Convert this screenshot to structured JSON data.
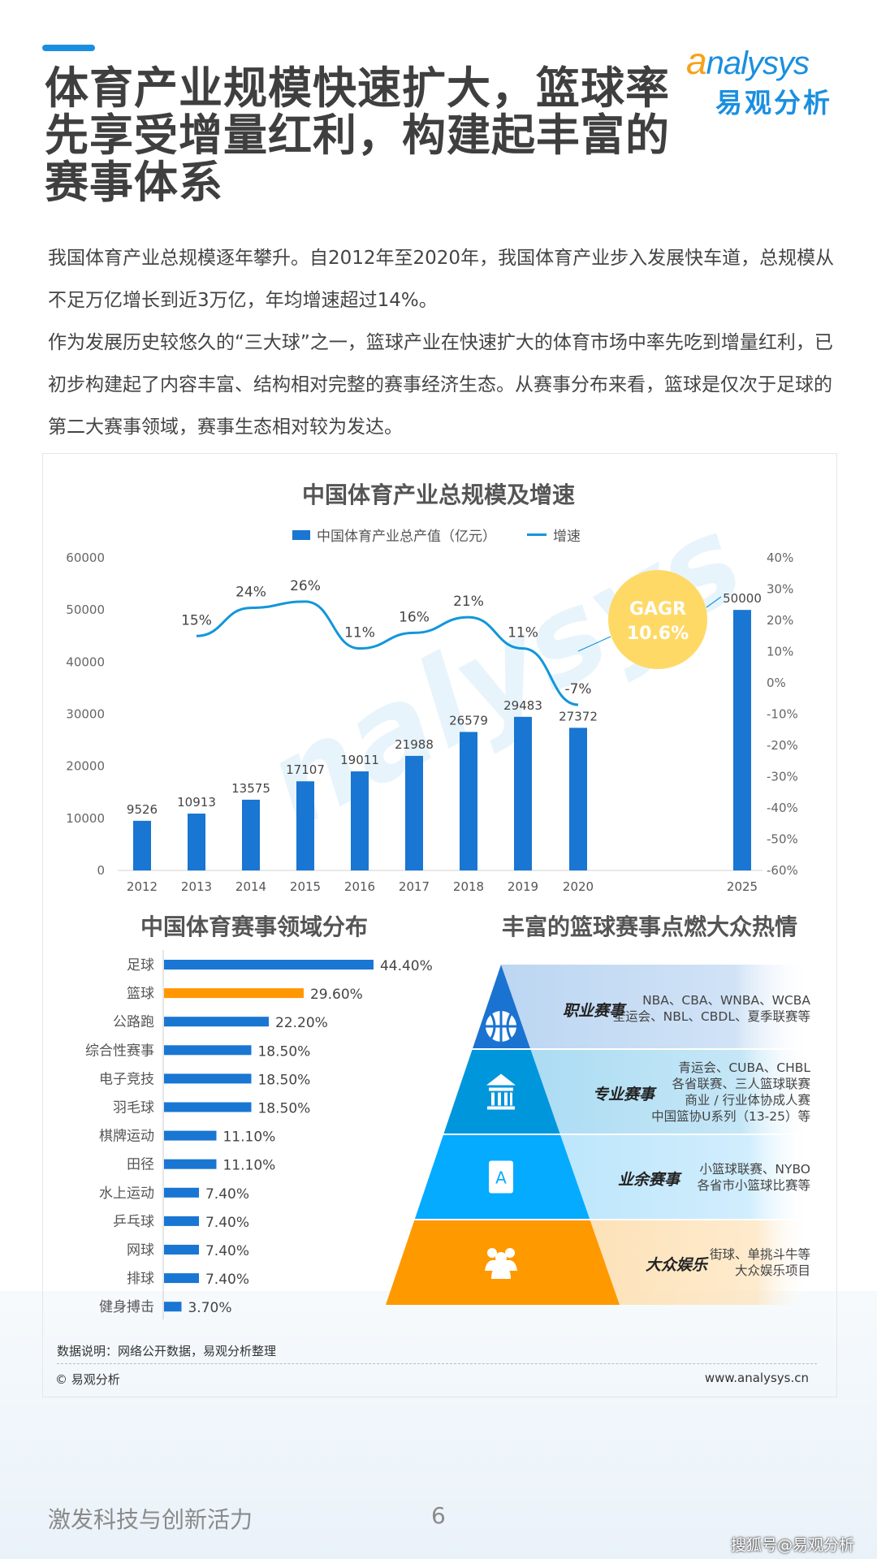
{
  "header": {
    "title_lines": [
      "体育产业规模快速扩大，篮球率",
      "先享受增量红利，构建起丰富的",
      "赛事体系"
    ],
    "logo": {
      "en": "analysys",
      "cn": "易观分析"
    }
  },
  "body_paragraphs": [
    "我国体育产业总规模逐年攀升。自2012年至2020年，我国体育产业步入发展快车道，总规模从不足万亿增长到近3万亿，年均增速超过14%。",
    "作为发展历史较悠久的“三大球”之一，篮球产业在快速扩大的体育市场中率先吃到增量红利，已初步构建起了内容丰富、结构相对完整的赛事经济生态。从赛事分布来看，篮球是仅次于足球的第二大赛事领域，赛事生态相对较为发达。"
  ],
  "colors": {
    "accent": "#1a8fe0",
    "bar_blue": "#1976d2",
    "line_blue": "#1296db",
    "orange": "#ff9800",
    "gagr": "#ffd966"
  },
  "chart_data": [
    {
      "type": "bar+line",
      "title": "中国体育产业总规模及增速",
      "categories": [
        "2012",
        "2013",
        "2014",
        "2015",
        "2016",
        "2017",
        "2018",
        "2019",
        "2020",
        "2025"
      ],
      "series": [
        {
          "name": "中国体育产业总产值（亿元）",
          "type": "bar",
          "axis": "left",
          "values": [
            9526,
            10913,
            13575,
            17107,
            19011,
            21988,
            26579,
            29483,
            27372,
            50000
          ]
        },
        {
          "name": "增速",
          "type": "line",
          "axis": "right",
          "values": [
            null,
            15,
            24,
            26,
            11,
            16,
            21,
            11,
            -7,
            null
          ],
          "labels": [
            "",
            "15%",
            "24%",
            "26%",
            "11%",
            "16%",
            "21%",
            "11%",
            "-7%",
            ""
          ]
        }
      ],
      "y_left": {
        "range": [
          0,
          60000
        ],
        "ticks": [
          "0",
          "10000",
          "20000",
          "30000",
          "40000",
          "50000",
          "60000"
        ]
      },
      "y_right": {
        "range": [
          -60,
          40
        ],
        "ticks": [
          "-60%",
          "-50%",
          "-40%",
          "-30%",
          "-20%",
          "-10%",
          "0%",
          "10%",
          "20%",
          "30%",
          "40%"
        ]
      },
      "annotation": {
        "line1": "GAGR",
        "line2": "10.6%"
      },
      "legend": "top",
      "grid": false
    },
    {
      "type": "bar",
      "orientation": "horizontal",
      "title": "中国体育赛事领域分布",
      "categories": [
        "足球",
        "篮球",
        "公路跑",
        "综合性赛事",
        "电子竞技",
        "羽毛球",
        "棋牌运动",
        "田径",
        "水上运动",
        "乒乓球",
        "网球",
        "排球",
        "健身搏击"
      ],
      "values": [
        44.4,
        29.6,
        22.2,
        18.5,
        18.5,
        18.5,
        11.1,
        11.1,
        7.4,
        7.4,
        7.4,
        7.4,
        3.7
      ],
      "labels": [
        "44.40%",
        "29.60%",
        "22.20%",
        "18.50%",
        "18.50%",
        "18.50%",
        "11.10%",
        "11.10%",
        "7.40%",
        "7.40%",
        "7.40%",
        "7.40%",
        "3.70%"
      ],
      "highlight": "篮球"
    }
  ],
  "pyramid": {
    "title": "丰富的篮球赛事点燃大众热情",
    "tiers": [
      {
        "name": "职业赛事",
        "icon": "basketball-icon",
        "color": "#1a73d1",
        "band": "#bcd6f2",
        "desc": [
          "NBA、CBA、WNBA、WCBA",
          "全运会、NBL、CBDL、夏季联赛等"
        ]
      },
      {
        "name": "专业赛事",
        "icon": "institution-icon",
        "color": "#0096dc",
        "band": "#acdcf3",
        "desc": [
          "青运会、CUBA、CHBL",
          "各省联赛、三人篮球联赛",
          "商业 / 行业体协成人赛",
          "中国篮协U系列（13-25）等"
        ]
      },
      {
        "name": "业余赛事",
        "icon": "amateur-a-icon",
        "color": "#04abff",
        "band": "#bde6fc",
        "desc": [
          "小篮球联赛、NYBO",
          "各省市小篮球比赛等"
        ]
      },
      {
        "name": "大众娱乐",
        "icon": "people-icon",
        "color": "#ff9900",
        "band": "#fde2b8",
        "desc": [
          "街球、单挑斗牛等",
          "大众娱乐项目"
        ]
      }
    ]
  },
  "source_note": "数据说明：网络公开数据，易观分析整理",
  "copyright": "© 易观分析",
  "website": "www.analysys.cn",
  "footer": {
    "slogan": "激发科技与创新活力",
    "page": "6",
    "platform": "搜狐号@易观分析"
  }
}
